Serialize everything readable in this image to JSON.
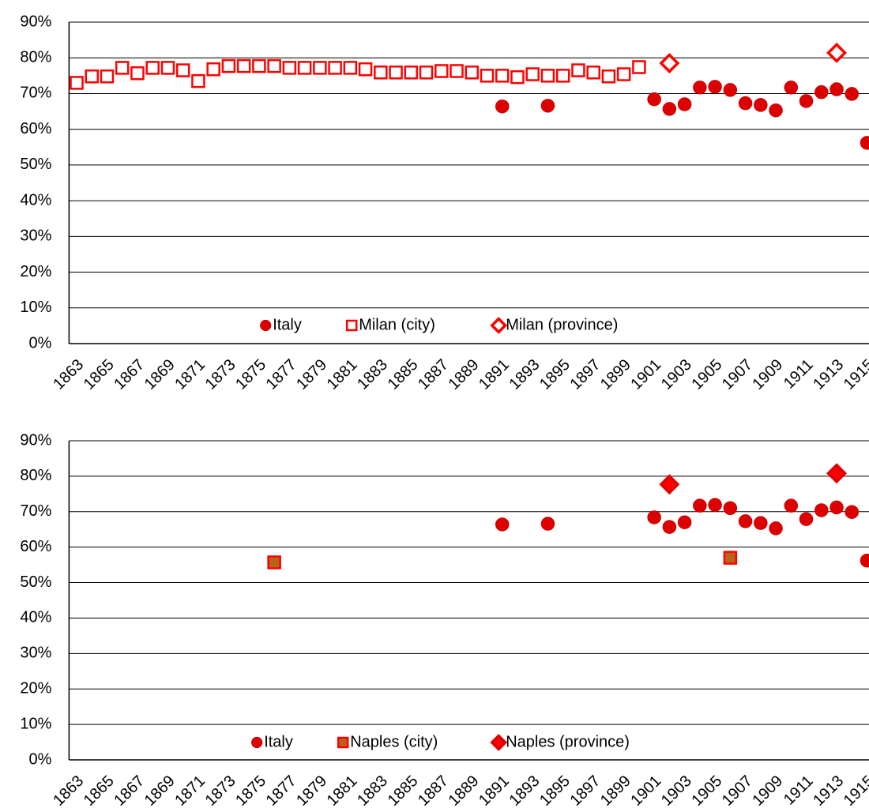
{
  "chart_data": [
    {
      "type": "scatter",
      "categories": [
        "1863",
        null,
        "1865",
        null,
        "1867",
        null,
        "1869",
        null,
        "1871",
        null,
        "1873",
        null,
        "1875",
        null,
        "1877",
        null,
        "1879",
        null,
        "1881",
        null,
        "1883",
        null,
        "1885",
        null,
        "1887",
        null,
        "1889",
        null,
        "1891",
        null,
        "1893",
        null,
        "1895",
        null,
        "1897",
        null,
        "1899",
        null,
        "1901",
        null,
        "1903",
        null,
        "1905",
        null,
        "1907",
        null,
        "1909",
        null,
        "1911",
        null,
        "1913",
        null,
        "1915"
      ],
      "series": [
        {
          "name": "Italy",
          "color": "#cc0000",
          "fill": "#dd0000",
          "marker": "circle",
          "values": [
            null,
            null,
            null,
            null,
            null,
            null,
            null,
            null,
            null,
            null,
            null,
            null,
            null,
            null,
            null,
            null,
            null,
            null,
            null,
            null,
            null,
            null,
            null,
            null,
            null,
            null,
            null,
            null,
            66.4,
            null,
            null,
            66.6,
            null,
            null,
            null,
            null,
            null,
            null,
            68.4,
            65.7,
            67.0,
            71.7,
            71.9,
            71.0,
            67.3,
            66.8,
            65.3,
            71.7,
            67.9,
            70.4,
            71.2,
            69.9,
            56.2
          ]
        },
        {
          "name": "Milan (city)",
          "color": "#ff0000",
          "fill": "#ffffff",
          "marker": "square",
          "values": [
            73.0,
            74.8,
            74.8,
            77.2,
            75.7,
            77.2,
            77.2,
            76.5,
            73.5,
            76.8,
            77.7,
            77.7,
            77.7,
            77.7,
            77.2,
            77.2,
            77.2,
            77.2,
            77.2,
            76.8,
            75.9,
            75.9,
            75.9,
            75.9,
            76.3,
            76.3,
            75.9,
            75.0,
            75.0,
            74.6,
            75.4,
            75.0,
            75.0,
            76.5,
            75.9,
            74.8,
            75.4,
            77.4,
            null,
            null,
            null,
            null,
            null,
            null,
            null,
            null,
            null,
            null,
            null,
            null,
            null,
            null,
            null
          ]
        },
        {
          "name": "Milan (province)",
          "color": "#ff0000",
          "fill": "#ffffff",
          "marker": "diamond",
          "values": [
            null,
            null,
            null,
            null,
            null,
            null,
            null,
            null,
            null,
            null,
            null,
            null,
            null,
            null,
            null,
            null,
            null,
            null,
            null,
            null,
            null,
            null,
            null,
            null,
            null,
            null,
            null,
            null,
            null,
            null,
            null,
            null,
            null,
            null,
            null,
            null,
            null,
            null,
            null,
            78.5,
            null,
            null,
            null,
            null,
            null,
            null,
            null,
            null,
            null,
            null,
            81.4,
            null,
            null
          ]
        }
      ],
      "ylim": [
        0,
        90
      ],
      "yticks": [
        {
          "value": 0,
          "label": "0%"
        },
        {
          "value": 10,
          "label": "10%"
        },
        {
          "value": 20,
          "label": "20%"
        },
        {
          "value": 30,
          "label": "30%"
        },
        {
          "value": 40,
          "label": "40%"
        },
        {
          "value": 50,
          "label": "50%"
        },
        {
          "value": 60,
          "label": "60%"
        },
        {
          "value": 70,
          "label": "70%"
        },
        {
          "value": 80,
          "label": "80%"
        },
        {
          "value": 90,
          "label": "90%"
        }
      ],
      "grid": true
    },
    {
      "type": "scatter",
      "categories": [
        "1863",
        null,
        "1865",
        null,
        "1867",
        null,
        "1869",
        null,
        "1871",
        null,
        "1873",
        null,
        "1875",
        null,
        "1877",
        null,
        "1879",
        null,
        "1881",
        null,
        "1883",
        null,
        "1885",
        null,
        "1887",
        null,
        "1889",
        null,
        "1891",
        null,
        "1893",
        null,
        "1895",
        null,
        "1897",
        null,
        "1899",
        null,
        "1901",
        null,
        "1903",
        null,
        "1905",
        null,
        "1907",
        null,
        "1909",
        null,
        "1911",
        null,
        "1913",
        null,
        "1915"
      ],
      "series": [
        {
          "name": "Italy",
          "color": "#cc0000",
          "fill": "#dd0000",
          "marker": "circle",
          "values": [
            null,
            null,
            null,
            null,
            null,
            null,
            null,
            null,
            null,
            null,
            null,
            null,
            null,
            null,
            null,
            null,
            null,
            null,
            null,
            null,
            null,
            null,
            null,
            null,
            null,
            null,
            null,
            null,
            66.4,
            null,
            null,
            66.6,
            null,
            null,
            null,
            null,
            null,
            null,
            68.4,
            65.7,
            67.0,
            71.7,
            71.9,
            71.0,
            67.3,
            66.8,
            65.3,
            71.7,
            67.9,
            70.4,
            71.2,
            69.9,
            56.2
          ]
        },
        {
          "name": "Naples (city)",
          "color": "#ff0000",
          "fill": "#b8621b",
          "marker": "square",
          "values": [
            null,
            null,
            null,
            null,
            null,
            null,
            null,
            null,
            null,
            null,
            null,
            null,
            null,
            55.7,
            null,
            null,
            null,
            null,
            null,
            null,
            null,
            null,
            null,
            null,
            null,
            null,
            null,
            null,
            null,
            null,
            null,
            null,
            null,
            null,
            null,
            null,
            null,
            null,
            null,
            null,
            null,
            null,
            null,
            57.0,
            null,
            null,
            null,
            null,
            null,
            null,
            null,
            null,
            null
          ]
        },
        {
          "name": "Naples (province)",
          "color": "#e00000",
          "fill": "#ff0000",
          "marker": "diamond",
          "values": [
            null,
            null,
            null,
            null,
            null,
            null,
            null,
            null,
            null,
            null,
            null,
            null,
            null,
            null,
            null,
            null,
            null,
            null,
            null,
            null,
            null,
            null,
            null,
            null,
            null,
            null,
            null,
            null,
            null,
            null,
            null,
            null,
            null,
            null,
            null,
            null,
            null,
            null,
            null,
            77.7,
            null,
            null,
            null,
            null,
            null,
            null,
            null,
            null,
            null,
            null,
            80.8,
            null,
            null
          ]
        }
      ],
      "ylim": [
        0,
        90
      ],
      "yticks": [
        {
          "value": 0,
          "label": "0%"
        },
        {
          "value": 10,
          "label": "10%"
        },
        {
          "value": 20,
          "label": "20%"
        },
        {
          "value": 30,
          "label": "30%"
        },
        {
          "value": 40,
          "label": "40%"
        },
        {
          "value": 50,
          "label": "50%"
        },
        {
          "value": 60,
          "label": "60%"
        },
        {
          "value": 70,
          "label": "70%"
        },
        {
          "value": 80,
          "label": "80%"
        },
        {
          "value": 90,
          "label": "90%"
        }
      ],
      "grid": true
    }
  ]
}
